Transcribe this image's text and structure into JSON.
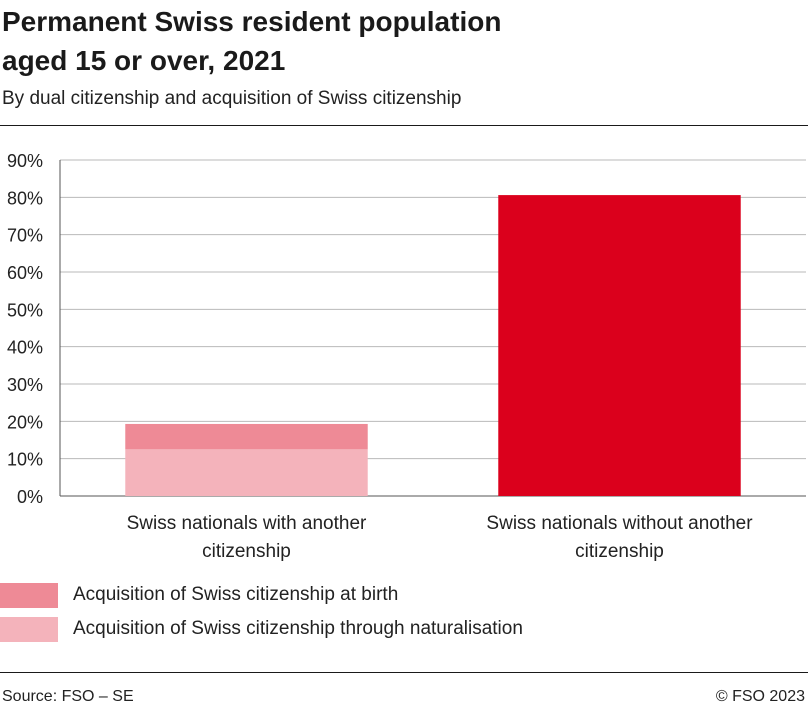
{
  "header": {
    "title_line1": "Permanent Swiss resident population",
    "title_line2": "aged 15 or over, 2021",
    "subtitle": "By dual citizenship and acquisition of Swiss citizenship"
  },
  "chart_data": {
    "type": "bar",
    "stacked": true,
    "categories": [
      [
        "Swiss nationals with another",
        "citizenship"
      ],
      [
        "Swiss nationals without another",
        "citizenship"
      ]
    ],
    "series": [
      {
        "name": "Acquisition of Swiss citizenship through naturalisation",
        "values": [
          12.5,
          0
        ],
        "color": "#f4b3bb"
      },
      {
        "name": "Acquisition of Swiss citizenship at birth",
        "values": [
          6.8,
          0
        ],
        "color": "#ee8a96"
      },
      {
        "name": "",
        "values": [
          0,
          80.6
        ],
        "color": "#db001c"
      }
    ],
    "ylim": [
      0,
      90
    ],
    "yticks": [
      "0%",
      "10%",
      "20%",
      "30%",
      "40%",
      "50%",
      "60%",
      "70%",
      "80%",
      "90%"
    ],
    "grid": true,
    "legend_position": "bottom"
  },
  "legend": {
    "items": [
      {
        "label": "Acquisition of Swiss citizenship at birth",
        "color": "#ee8a96"
      },
      {
        "label": "Acquisition of Swiss citizenship through naturalisation",
        "color": "#f4b3bb"
      }
    ]
  },
  "footer": {
    "source": "Source: FSO –  SE",
    "copyright": "© FSO 2023"
  }
}
